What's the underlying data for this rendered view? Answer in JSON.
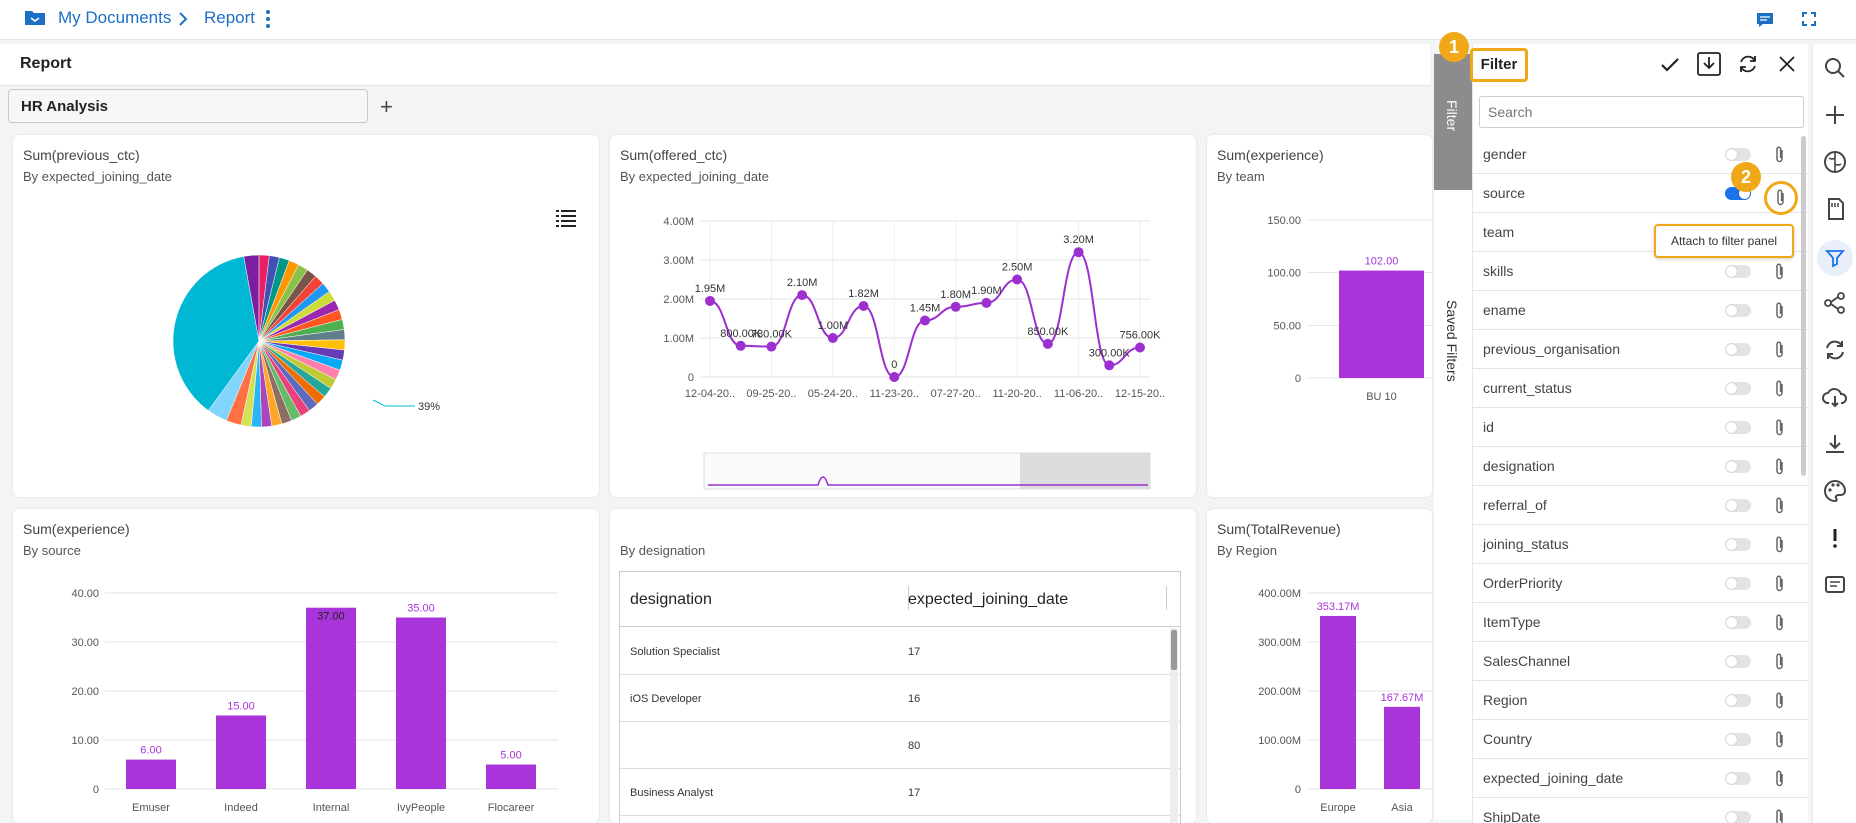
{
  "breadcrumb": {
    "root": "My Documents",
    "current": "Report"
  },
  "report": {
    "title": "Report"
  },
  "tabs": [
    {
      "label": "HR Analysis"
    }
  ],
  "add_tab": "+",
  "widgets": {
    "pie": {
      "title": "Sum(previous_ctc)",
      "subtitle": "By expected_joining_date",
      "slice_label": "39%"
    },
    "line": {
      "title": "Sum(offered_ctc)",
      "subtitle": "By expected_joining_date"
    },
    "bar_team": {
      "title": "Sum(experience)",
      "subtitle": "By team"
    },
    "bar_source": {
      "title": "Sum(experience)",
      "subtitle": "By source"
    },
    "table": {
      "subtitle": "By designation",
      "columns": [
        "designation",
        "expected_joining_date"
      ],
      "rows": [
        [
          "Solution Specialist",
          "17"
        ],
        [
          "iOS Developer",
          "16"
        ],
        [
          "",
          "80"
        ],
        [
          "Business Analyst",
          "17"
        ]
      ]
    },
    "bar_region": {
      "title": "Sum(TotalRevenue)",
      "subtitle": "By Region"
    }
  },
  "chart_data": [
    {
      "type": "pie",
      "title": "Sum(previous_ctc)",
      "subtitle": "By expected_joining_date",
      "slices": [
        {
          "value": 39,
          "color": "#00b8d4",
          "label": "39%"
        },
        {
          "value": 3,
          "color": "#7b1fa2"
        },
        {
          "value": 2,
          "color": "#e91e63"
        },
        {
          "value": 2,
          "color": "#3f51b5"
        },
        {
          "value": 2,
          "color": "#009688"
        },
        {
          "value": 2,
          "color": "#ff9800"
        },
        {
          "value": 2,
          "color": "#8bc34a"
        },
        {
          "value": 2,
          "color": "#795548"
        },
        {
          "value": 2,
          "color": "#f44336"
        },
        {
          "value": 2,
          "color": "#2196f3"
        },
        {
          "value": 2,
          "color": "#cddc39"
        },
        {
          "value": 2,
          "color": "#9c27b0"
        },
        {
          "value": 2,
          "color": "#ff5722"
        },
        {
          "value": 2,
          "color": "#4caf50"
        },
        {
          "value": 2,
          "color": "#607d8b"
        },
        {
          "value": 2,
          "color": "#ffc107"
        },
        {
          "value": 2,
          "color": "#673ab7"
        },
        {
          "value": 2,
          "color": "#03a9f4"
        },
        {
          "value": 2,
          "color": "#ff80ab"
        },
        {
          "value": 2,
          "color": "#c0ca33"
        },
        {
          "value": 2,
          "color": "#26a69a"
        },
        {
          "value": 2,
          "color": "#ef6c00"
        },
        {
          "value": 2,
          "color": "#5c6bc0"
        },
        {
          "value": 2,
          "color": "#ec407a"
        },
        {
          "value": 2,
          "color": "#66bb6a"
        },
        {
          "value": 2,
          "color": "#8d6e63"
        },
        {
          "value": 2,
          "color": "#ffa726"
        },
        {
          "value": 2,
          "color": "#ab47bc"
        },
        {
          "value": 2,
          "color": "#29b6f6"
        },
        {
          "value": 2,
          "color": "#d4e157"
        },
        {
          "value": 3,
          "color": "#ff7043"
        },
        {
          "value": 4,
          "color": "#81d4fa"
        }
      ]
    },
    {
      "type": "line",
      "title": "Sum(offered_ctc)",
      "subtitle": "By expected_joining_date",
      "x": [
        "12-04-20..",
        "",
        "09-25-20..",
        "",
        "05-24-20..",
        "",
        "11-23-20..",
        "",
        "07-27-20..",
        "",
        "11-20-20..",
        "",
        "11-06-20..",
        "",
        "12-15-20.."
      ],
      "x_tick_labels": [
        "12-04-20..",
        "09-25-20..",
        "05-24-20..",
        "11-23-20..",
        "07-27-20..",
        "11-20-20..",
        "11-06-20..",
        "12-15-20.."
      ],
      "values": [
        1.95,
        0.8,
        0.78,
        2.1,
        1.0,
        1.82,
        0,
        1.45,
        1.8,
        1.9,
        2.5,
        0.85,
        3.2,
        0.3,
        0.756
      ],
      "data_labels": [
        "1.95M",
        "800.00K",
        "780.00K",
        "2.10M",
        "1.00M",
        "1.82M",
        "0",
        "1.45M",
        "1.80M",
        "1.90M",
        "2.50M",
        "850.00K",
        "3.20M",
        "300.00K",
        "756.00K"
      ],
      "y_ticks": [
        "0",
        "1.00M",
        "2.00M",
        "3.00M",
        "4.00M"
      ],
      "ylim": [
        0,
        4
      ],
      "color": "#9c2fd0"
    },
    {
      "type": "bar",
      "title": "Sum(experience)",
      "subtitle": "By team",
      "categories": [
        "BU 10"
      ],
      "values": [
        102
      ],
      "data_labels": [
        "102.00"
      ],
      "y_ticks": [
        "0",
        "50.00",
        "100.00",
        "150.00"
      ],
      "ylim": [
        0,
        150
      ],
      "color": "#a934d9"
    },
    {
      "type": "bar",
      "title": "Sum(experience)",
      "subtitle": "By source",
      "categories": [
        "Emuser",
        "Indeed",
        "Internal",
        "IvyPeople",
        "Flocareer"
      ],
      "values": [
        6,
        15,
        37,
        35,
        5
      ],
      "data_labels": [
        "6.00",
        "15.00",
        "37.00",
        "35.00",
        "5.00"
      ],
      "y_ticks": [
        "0",
        "10.00",
        "20.00",
        "30.00",
        "40.00"
      ],
      "ylim": [
        0,
        40
      ],
      "color": "#a934d9"
    },
    {
      "type": "bar",
      "title": "Sum(TotalRevenue)",
      "subtitle": "By Region",
      "categories": [
        "Europe",
        "Asia"
      ],
      "values": [
        353.17,
        167.67
      ],
      "data_labels": [
        "353.17M",
        "167.67M"
      ],
      "y_ticks": [
        "0",
        "100.00M",
        "200.00M",
        "300.00M",
        "400.00M"
      ],
      "ylim": [
        0,
        400
      ],
      "color": "#a934d9"
    }
  ],
  "filter_panel": {
    "side_tabs": [
      "Filter",
      "Saved Filters"
    ],
    "title": "Filter",
    "step1": "1",
    "step2": "2",
    "search_placeholder": "Search",
    "tooltip": "Attach to filter panel",
    "fields": [
      {
        "label": "gender",
        "on": false
      },
      {
        "label": "source",
        "on": true
      },
      {
        "label": "team",
        "on": false
      },
      {
        "label": "skills",
        "on": false
      },
      {
        "label": "ename",
        "on": false
      },
      {
        "label": "previous_organisation",
        "on": false
      },
      {
        "label": "current_status",
        "on": false
      },
      {
        "label": "id",
        "on": false
      },
      {
        "label": "designation",
        "on": false
      },
      {
        "label": "referral_of",
        "on": false
      },
      {
        "label": "joining_status",
        "on": false
      },
      {
        "label": "OrderPriority",
        "on": false
      },
      {
        "label": "ItemType",
        "on": false
      },
      {
        "label": "SalesChannel",
        "on": false
      },
      {
        "label": "Region",
        "on": false
      },
      {
        "label": "Country",
        "on": false
      },
      {
        "label": "expected_joining_date",
        "on": false
      },
      {
        "label": "ShipDate",
        "on": false
      }
    ]
  },
  "colors": {
    "accent": "#1a73e8",
    "highlight": "#f0a818",
    "bar": "#a934d9"
  }
}
